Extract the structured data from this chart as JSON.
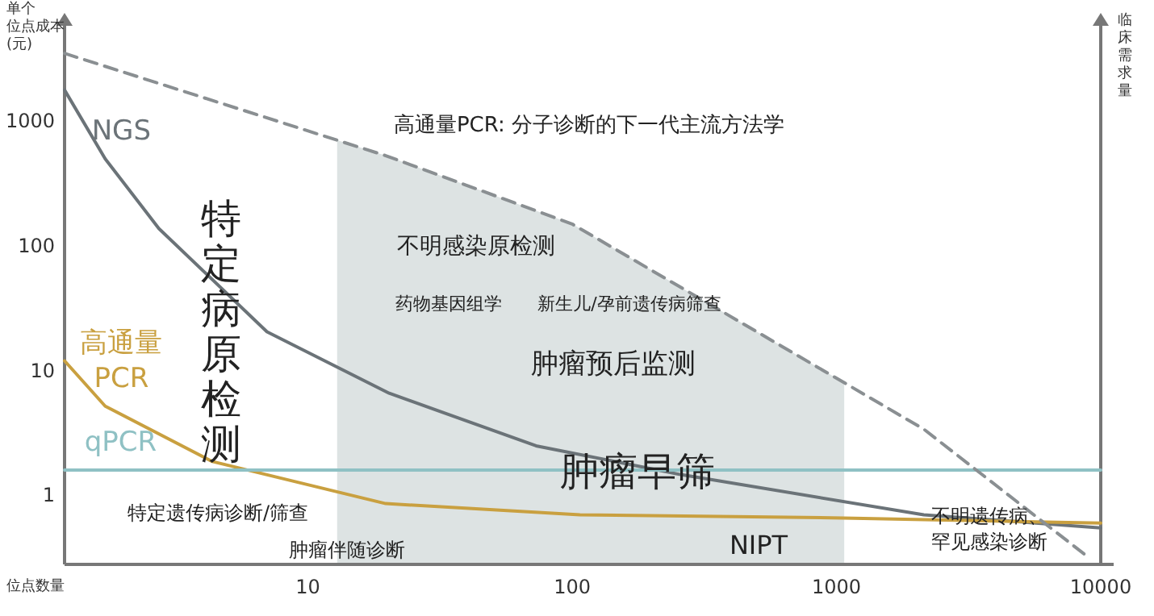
{
  "chart_data": {
    "type": "line",
    "xlabel": "位点数量",
    "ylabel": "单个位点成本(元)",
    "y2label": "临床需求量",
    "log": "xy",
    "xlim": [
      1.2,
      10000
    ],
    "ylim": [
      0.28,
      6000
    ],
    "xticks": [
      10,
      100,
      1000,
      10000
    ],
    "yticks": [
      1,
      10,
      100,
      1000
    ],
    "grid": false,
    "marker": "none",
    "series": [
      {
        "name": "NGS",
        "color": "#6b7378",
        "x": [
          1.2,
          1.71,
          2.73,
          7.0,
          20.3,
          73,
          257,
          2140,
          10000
        ],
        "values": [
          1780,
          500,
          138,
          20.5,
          6.6,
          2.5,
          1.47,
          0.7,
          0.55
        ]
      },
      {
        "name": "高通量\nPCR",
        "color": "#c9a040",
        "x": [
          1.2,
          1.71,
          4.35,
          19.7,
          107,
          1060,
          10000
        ],
        "values": [
          12,
          5.2,
          1.87,
          0.86,
          0.7,
          0.66,
          0.6
        ]
      },
      {
        "name": "qPCR",
        "color": "#8fc1c4",
        "x": [
          1.2,
          1.7,
          10000
        ],
        "values": [
          1.6,
          1.6,
          1.6
        ]
      },
      {
        "color": "#8a8f92",
        "line_style": "dashed",
        "x": [
          1.2,
          19.7,
          100,
          2140,
          8800
        ],
        "values": [
          3500,
          530,
          150,
          3.4,
          0.33
        ]
      }
    ],
    "bands": [
      {
        "axis": "x",
        "from": 12.9,
        "to": 1070,
        "color": "#dde3e3"
      }
    ],
    "annotations": [
      "高通量PCR: 分子诊断的下一代主流方法学",
      "特定病原检测",
      "不明感染原检测",
      "药物基因组学",
      "新生儿/孕前遗传病筛查",
      "肿瘤预后监测",
      "肿瘤早筛",
      "特定遗传病诊断/筛查",
      "肿瘤伴随诊断",
      "NIPT",
      "不明遗传病、",
      "罕见感染诊断"
    ]
  }
}
